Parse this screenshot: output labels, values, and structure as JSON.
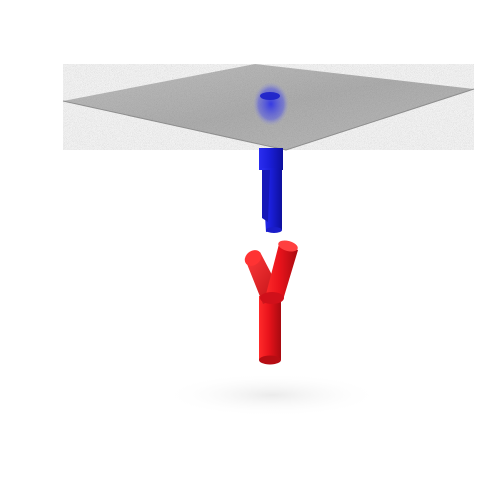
{
  "scene": {
    "background": "#ffffff",
    "objects": [
      {
        "kind": "plate",
        "surface": "grainy-metallic",
        "color": "#b9b9b9"
      },
      {
        "kind": "peg",
        "color": "#1f22d8",
        "attached_to": "plate",
        "part_count": 2
      },
      {
        "kind": "y-connector",
        "color": "#e3121a",
        "branch_count": 2
      }
    ]
  }
}
